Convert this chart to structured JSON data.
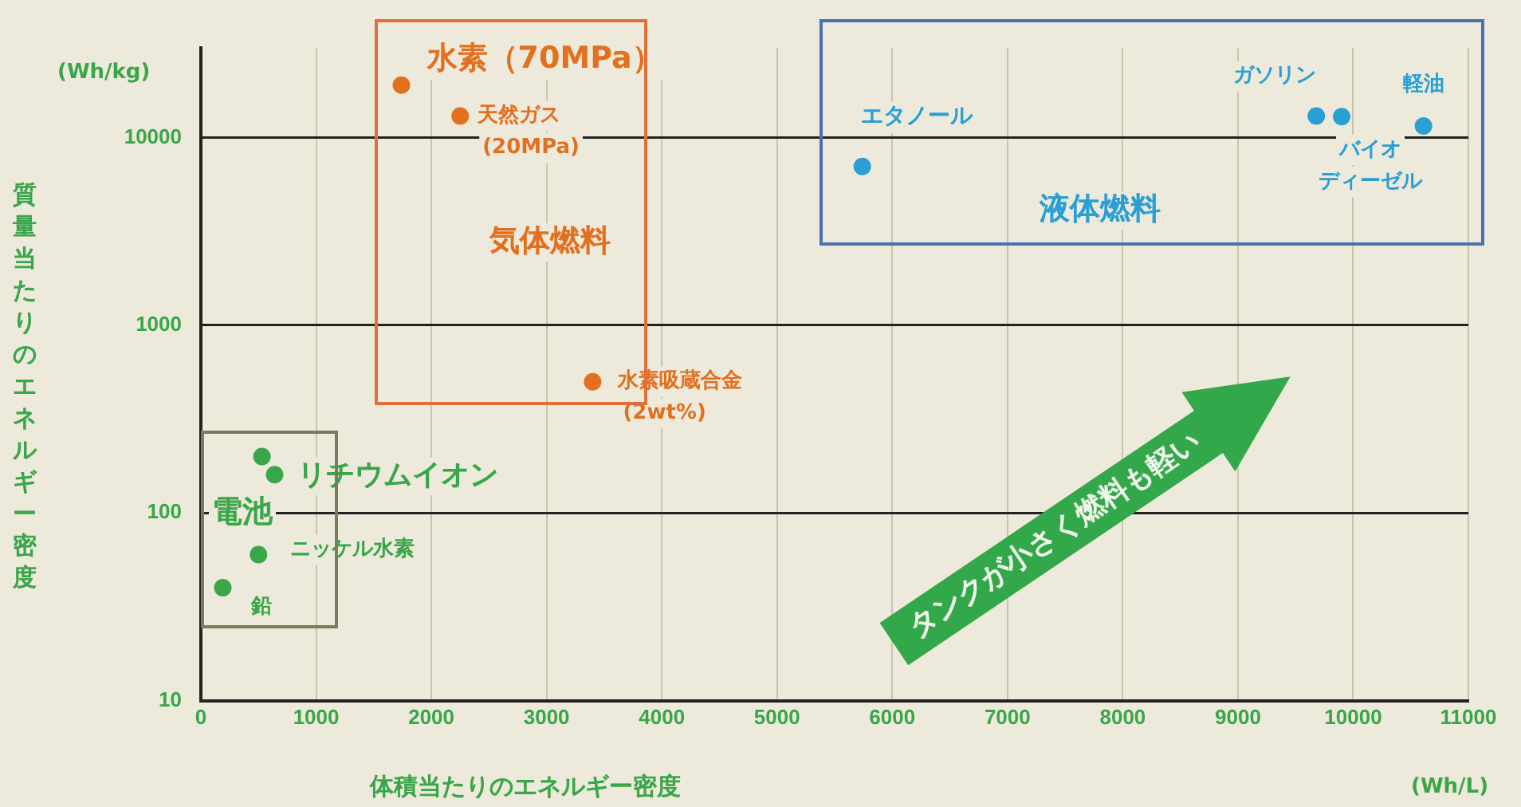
{
  "chart_data": {
    "type": "scatter",
    "xlabel": "体積当たりのエネルギー密度",
    "ylabel": "質量当たりのエネルギー密度",
    "xlim": [
      0,
      11000
    ],
    "xticks": [
      0,
      1000,
      2000,
      3000,
      4000,
      5000,
      6000,
      7000,
      8000,
      9000,
      10000,
      11000
    ],
    "ylim": [
      10,
      30000
    ],
    "yticks": [
      10,
      100,
      1000,
      10000
    ],
    "log": "y",
    "grid": true,
    "legend": false,
    "marker": "circle",
    "series": [
      {
        "name": "気体燃料",
        "color": "#e2701f",
        "x": [
          1740,
          2250,
          3400
        ],
        "values": [
          19000,
          13000,
          500
        ]
      },
      {
        "name": "液体燃料",
        "color": "#2a9fd6",
        "x": [
          5740,
          9680,
          9900,
          10610
        ],
        "values": [
          7000,
          13000,
          12900,
          11500
        ]
      },
      {
        "name": "電池",
        "color": "#3aa64a",
        "x": [
          530,
          640,
          500,
          190
        ],
        "values": [
          200,
          160,
          60,
          40
        ]
      }
    ],
    "annotations": [
      "(Wh/kg)",
      "(Wh/L)",
      "タンクが小さく燃料も軽い",
      {
        "text": "水素（70MPa）",
        "x": 1740,
        "y": 19000
      },
      {
        "text": "天然ガス\n(20MPa)",
        "x": 2250,
        "y": 13000
      },
      {
        "text": "水素吸蔵合金\n(2wt%)",
        "x": 3400,
        "y": 500
      },
      {
        "text": "エタノール",
        "x": 5740,
        "y": 7000
      },
      {
        "text": "ガソリン",
        "x": 9680,
        "y": 13000
      },
      {
        "text": "バイオ",
        "x": 9900,
        "y": 12900
      },
      {
        "text": "ディーゼル",
        "x": 9900,
        "y": 12900
      },
      {
        "text": "軽油",
        "x": 10610,
        "y": 11500
      },
      {
        "text": "リチウムイオン",
        "x": 640,
        "y": 160
      },
      {
        "text": "ニッケル水素",
        "x": 500,
        "y": 60
      },
      {
        "text": "鉛",
        "x": 190,
        "y": 40
      }
    ]
  }
}
